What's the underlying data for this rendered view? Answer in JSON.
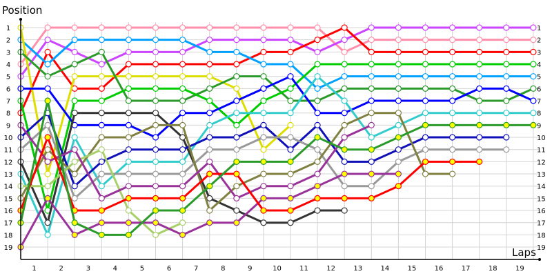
{
  "chart_data": {
    "type": "line",
    "xlabel": "Laps",
    "ylabel": "Position",
    "x_ticks": [
      "1",
      "2",
      "3",
      "4",
      "5",
      "6",
      "7",
      "8",
      "9",
      "10",
      "11",
      "12",
      "13",
      "14",
      "15",
      "16",
      "17",
      "18",
      "19"
    ],
    "y_ticks": [
      "1",
      "2",
      "3",
      "4",
      "5",
      "6",
      "7",
      "8",
      "9",
      "10",
      "11",
      "12",
      "13",
      "14",
      "15",
      "16",
      "17",
      "18",
      "19"
    ],
    "xlim": [
      0,
      19
    ],
    "ylim": [
      1,
      19
    ],
    "y_inverted": true,
    "grid": true,
    "marker_fill_default": "#ffffff",
    "marker_fill_highlight": "#ffff00",
    "series": [
      {
        "color": "#ff8fab",
        "values": [
          4,
          1,
          1,
          1,
          1,
          1,
          1,
          1,
          1,
          1,
          1,
          1,
          3,
          2,
          2,
          2,
          2,
          2,
          2,
          2
        ]
      },
      {
        "color": "#cc44ff",
        "values": [
          5,
          2,
          3,
          4,
          3,
          3,
          3,
          2,
          2,
          2,
          2,
          3,
          2,
          1,
          1,
          1,
          1,
          1,
          1,
          1
        ]
      },
      {
        "color": "#ff0000",
        "values": [
          8,
          3,
          6,
          6,
          4,
          4,
          4,
          4,
          4,
          3,
          3,
          2,
          1,
          3,
          3,
          3,
          3,
          3,
          3,
          3
        ]
      },
      {
        "color": "#00a0ff",
        "values": [
          2,
          4,
          2,
          2,
          2,
          2,
          2,
          3,
          3,
          4,
          4,
          6,
          5,
          5,
          5,
          5,
          5,
          5,
          5,
          5
        ]
      },
      {
        "color": "#dddd00",
        "values": [
          1,
          13,
          5,
          5,
          5,
          5,
          5,
          5,
          6,
          11,
          9
        ]
      },
      {
        "color": "#2a9a2a",
        "values": [
          3,
          5,
          4,
          3,
          7,
          7,
          7,
          6,
          5,
          5,
          7,
          7,
          6,
          6,
          6,
          6,
          6,
          7,
          7,
          6
        ]
      },
      {
        "color": "#00cc00",
        "values": [
          7,
          16,
          7,
          7,
          6,
          6,
          6,
          7,
          9,
          7,
          6,
          4,
          4,
          4,
          4,
          4,
          4,
          4,
          4,
          4
        ]
      },
      {
        "color": "#0000ff",
        "values": [
          6,
          6,
          9,
          9,
          9,
          10,
          8,
          8,
          7,
          6,
          5,
          8,
          8,
          7,
          7,
          7,
          7,
          6,
          6,
          7
        ]
      },
      {
        "color": "#33cccc",
        "values": [
          13,
          18,
          10,
          14,
          12,
          12,
          12,
          9,
          8,
          8,
          8,
          5,
          7,
          10,
          9,
          8,
          8,
          8,
          8,
          8
        ]
      },
      {
        "color": "#333333",
        "values": [
          12,
          17,
          8,
          8,
          8,
          8,
          10,
          15,
          16,
          17,
          17,
          16,
          16
        ]
      },
      {
        "color": "#1010b8",
        "values": [
          10,
          8,
          14,
          12,
          11,
          11,
          11,
          10,
          10,
          9,
          11,
          9,
          12,
          12,
          11,
          10,
          10,
          10,
          10
        ]
      },
      {
        "color": "#999999",
        "values": [
          11,
          9,
          15,
          13,
          13,
          13,
          13,
          11,
          11,
          10,
          10,
          11,
          14,
          14,
          12,
          11,
          11,
          11,
          11
        ]
      },
      {
        "color": "#808040",
        "values": [
          15,
          11,
          13,
          10,
          10,
          9,
          9,
          16,
          14,
          13,
          13,
          12,
          9,
          8,
          8,
          13,
          13
        ]
      },
      {
        "color": "#a8d068",
        "values": [
          14,
          14,
          12,
          11,
          16,
          18,
          17
        ]
      },
      {
        "color": "#993399",
        "values": [
          9,
          12,
          11,
          15,
          14,
          14,
          14,
          12,
          15,
          14,
          14,
          13,
          10,
          9
        ]
      },
      {
        "color": "#993399",
        "pit_markers": true,
        "values": [
          19,
          15,
          18,
          17,
          17,
          17,
          18,
          17,
          17,
          15,
          15,
          14,
          13,
          13,
          13
        ]
      },
      {
        "color": "#ff0000",
        "pit_markers": true,
        "values": [
          16,
          10,
          16,
          16,
          15,
          15,
          15,
          13,
          13,
          16,
          16,
          15,
          15,
          15,
          14,
          12,
          12,
          12
        ]
      },
      {
        "color": "#2a9a2a",
        "pit_markers": true,
        "values": [
          17,
          7,
          17,
          18,
          18,
          16,
          16,
          14,
          12,
          12,
          12,
          10,
          11,
          11,
          10,
          9,
          9,
          9,
          9,
          9
        ]
      }
    ]
  }
}
